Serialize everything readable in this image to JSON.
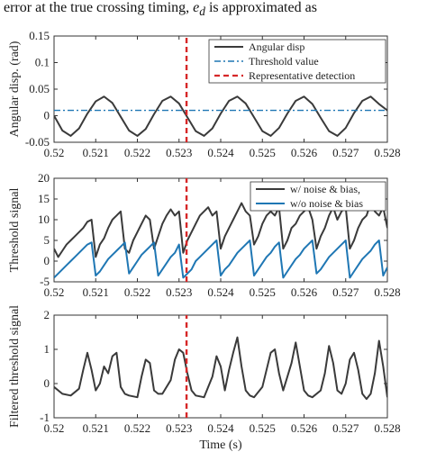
{
  "header": {
    "text": "error at the true crossing timing, e_d is approximated as",
    "text_prefix": "error at the true crossing timing, ",
    "text_var": "e",
    "text_sub": "d",
    "text_suffix": " is approximated as"
  },
  "colors": {
    "dark": "#3a3a3a",
    "blue": "#1f77b4",
    "red": "#d62728",
    "axis": "#333333"
  },
  "chart_data": [
    {
      "type": "line",
      "id": "angular",
      "ylabel": "Angular disp. (rad)",
      "xlabel": "",
      "xlim": [
        0.52,
        0.528
      ],
      "ylim": [
        -0.05,
        0.15
      ],
      "x_ticks": [
        "0.52",
        "0.521",
        "0.522",
        "0.523",
        "0.524",
        "0.525",
        "0.526",
        "0.527",
        "0.528"
      ],
      "y_ticks": [
        "-0.05",
        "0",
        "0.05",
        "0.1",
        "0.15"
      ],
      "legend_position": "top-right",
      "series": [
        {
          "name": "Angular disp",
          "style": "solid",
          "color": "#3a3a3a",
          "x": [
            0.52,
            0.5202,
            0.5204,
            0.5206,
            0.5208,
            0.521,
            0.5212,
            0.5214,
            0.5216,
            0.5218,
            0.522,
            0.5222,
            0.5224,
            0.5226,
            0.5228,
            0.523,
            0.5232,
            0.5234,
            0.5236,
            0.5238,
            0.524,
            0.5242,
            0.5244,
            0.5246,
            0.5248,
            0.525,
            0.5252,
            0.5254,
            0.5256,
            0.5258,
            0.526,
            0.5262,
            0.5264,
            0.5266,
            0.5268,
            0.527,
            0.5272,
            0.5274,
            0.5276,
            0.5278,
            0.528
          ],
          "y": [
            0.0,
            -0.028,
            -0.038,
            -0.024,
            0.004,
            0.027,
            0.036,
            0.024,
            -0.002,
            -0.028,
            -0.038,
            -0.025,
            0.003,
            0.028,
            0.036,
            0.023,
            -0.003,
            -0.029,
            -0.038,
            -0.024,
            0.004,
            0.028,
            0.036,
            0.023,
            -0.003,
            -0.029,
            -0.038,
            -0.023,
            0.004,
            0.028,
            0.036,
            0.022,
            -0.004,
            -0.029,
            -0.038,
            -0.023,
            0.005,
            0.028,
            0.036,
            0.022,
            0.01
          ]
        },
        {
          "name": "Threshold value",
          "style": "dashdot",
          "color": "#1f77b4",
          "x": [
            0.52,
            0.528
          ],
          "y": [
            0.01,
            0.01
          ]
        },
        {
          "name": "Representative detection",
          "style": "dashed",
          "color": "#d62728",
          "x": [
            0.52318,
            0.52318
          ],
          "y": [
            -0.05,
            0.15
          ]
        }
      ]
    },
    {
      "type": "line",
      "id": "threshold",
      "ylabel": "Threshold signal",
      "xlabel": "",
      "xlim": [
        0.52,
        0.528
      ],
      "ylim": [
        -5,
        20
      ],
      "x_ticks": [
        "0.52",
        "0.521",
        "0.522",
        "0.523",
        "0.524",
        "0.525",
        "0.526",
        "0.527",
        "0.528"
      ],
      "y_ticks": [
        "-5",
        "0",
        "5",
        "10",
        "15",
        "20"
      ],
      "legend_position": "top-right",
      "series": [
        {
          "name": "w/ noise & bias,",
          "style": "solid",
          "color": "#3a3a3a",
          "x": [
            0.52,
            0.5201,
            0.5202,
            0.5203,
            0.5204,
            0.5205,
            0.5206,
            0.5207,
            0.5208,
            0.5209,
            0.521,
            0.5211,
            0.5212,
            0.5213,
            0.5214,
            0.5215,
            0.5216,
            0.5217,
            0.5218,
            0.5219,
            0.522,
            0.5221,
            0.5222,
            0.5223,
            0.5224,
            0.5225,
            0.5226,
            0.5227,
            0.5228,
            0.5229,
            0.523,
            0.5231,
            0.5232,
            0.5233,
            0.5234,
            0.5235,
            0.5236,
            0.5237,
            0.5238,
            0.5239,
            0.524,
            0.5241,
            0.5242,
            0.5243,
            0.5244,
            0.5245,
            0.5246,
            0.5247,
            0.5248,
            0.5249,
            0.525,
            0.5251,
            0.5252,
            0.5253,
            0.5254,
            0.5255,
            0.5256,
            0.5257,
            0.5258,
            0.5259,
            0.526,
            0.5261,
            0.5262,
            0.5263,
            0.5264,
            0.5265,
            0.5266,
            0.5267,
            0.5268,
            0.5269,
            0.527,
            0.5271,
            0.5272,
            0.5273,
            0.5274,
            0.5275,
            0.5276,
            0.5277,
            0.5278,
            0.5279,
            0.528
          ],
          "y": [
            3,
            1,
            2.5,
            4,
            5,
            6,
            7,
            8,
            9.5,
            10,
            1,
            4,
            5.5,
            8,
            10,
            11,
            12,
            3,
            2,
            5,
            7,
            9,
            11,
            10,
            3,
            6,
            9,
            11,
            12.5,
            11,
            12,
            2,
            5,
            7,
            9,
            11,
            12,
            13,
            11,
            12,
            3,
            6,
            8,
            10,
            12,
            14,
            12,
            11,
            4,
            6,
            9,
            11,
            12,
            11,
            13,
            3,
            5,
            8,
            9,
            11,
            12,
            13,
            10,
            3,
            6,
            8,
            11,
            13,
            10,
            12,
            13,
            3,
            5,
            8,
            10,
            11,
            14,
            12,
            11,
            13,
            8
          ]
        },
        {
          "name": "w/o noise & bias",
          "style": "solid",
          "color": "#1f77b4",
          "x": [
            0.52,
            0.5201,
            0.5202,
            0.5203,
            0.5204,
            0.5205,
            0.5206,
            0.5207,
            0.5208,
            0.5209,
            0.521,
            0.5211,
            0.5212,
            0.5213,
            0.5214,
            0.5215,
            0.5216,
            0.5217,
            0.5218,
            0.5219,
            0.522,
            0.5221,
            0.5222,
            0.5223,
            0.5224,
            0.5225,
            0.5226,
            0.5227,
            0.5228,
            0.5229,
            0.523,
            0.5231,
            0.5232,
            0.5233,
            0.5234,
            0.5235,
            0.5236,
            0.5237,
            0.5238,
            0.5239,
            0.524,
            0.5241,
            0.5242,
            0.5243,
            0.5244,
            0.5245,
            0.5246,
            0.5247,
            0.5248,
            0.5249,
            0.525,
            0.5251,
            0.5252,
            0.5253,
            0.5254,
            0.5255,
            0.5256,
            0.5257,
            0.5258,
            0.5259,
            0.526,
            0.5261,
            0.5262,
            0.5263,
            0.5264,
            0.5265,
            0.5266,
            0.5267,
            0.5268,
            0.5269,
            0.527,
            0.5271,
            0.5272,
            0.5273,
            0.5274,
            0.5275,
            0.5276,
            0.5277,
            0.5278,
            0.5279,
            0.528
          ],
          "y": [
            -4,
            -3,
            -2,
            -1,
            0,
            1,
            2,
            3,
            4,
            4.5,
            -3.5,
            -2.5,
            -1,
            0.5,
            1.5,
            2.5,
            3.5,
            4.5,
            -3,
            -1.5,
            0,
            1.5,
            2.5,
            3.5,
            4.5,
            -3.5,
            -2,
            -0.5,
            1,
            2,
            4,
            -4,
            -3,
            -2,
            0,
            1,
            2,
            3,
            4,
            5,
            -3.5,
            -2,
            -1,
            0.5,
            2,
            3,
            4,
            5,
            -3.5,
            -2,
            -0.5,
            1,
            2,
            3.5,
            4.5,
            -4,
            -2.5,
            -1,
            0.5,
            1.5,
            3,
            4,
            5,
            -3,
            -2,
            -0.5,
            1,
            2,
            3,
            4,
            5,
            -4,
            -2.5,
            -1,
            0.5,
            1.5,
            2.5,
            4,
            5,
            -3.5,
            -1.5
          ]
        },
        {
          "name": "",
          "style": "dashed",
          "color": "#d62728",
          "x": [
            0.52318,
            0.52318
          ],
          "y": [
            -5,
            20
          ]
        }
      ]
    },
    {
      "type": "line",
      "id": "filtered",
      "ylabel": "Filtered threshold signal",
      "xlabel": "Time (s)",
      "xlim": [
        0.52,
        0.528
      ],
      "ylim": [
        -1,
        2
      ],
      "x_ticks": [
        "0.52",
        "0.521",
        "0.522",
        "0.523",
        "0.524",
        "0.525",
        "0.526",
        "0.527",
        "0.528"
      ],
      "y_ticks": [
        "-1",
        "0",
        "1",
        "2"
      ],
      "series": [
        {
          "name": "",
          "style": "solid",
          "color": "#3a3a3a",
          "x": [
            0.52,
            0.5202,
            0.5204,
            0.5206,
            0.5207,
            0.5208,
            0.5209,
            0.521,
            0.5211,
            0.5212,
            0.5213,
            0.5214,
            0.5215,
            0.5216,
            0.5217,
            0.5218,
            0.522,
            0.5221,
            0.5222,
            0.5223,
            0.5224,
            0.5225,
            0.5226,
            0.5228,
            0.5229,
            0.523,
            0.5231,
            0.5232,
            0.5233,
            0.5234,
            0.5236,
            0.5237,
            0.5238,
            0.5239,
            0.524,
            0.5241,
            0.5242,
            0.5243,
            0.5244,
            0.5245,
            0.5246,
            0.5247,
            0.5248,
            0.525,
            0.5251,
            0.5252,
            0.5253,
            0.5254,
            0.5255,
            0.5256,
            0.5257,
            0.5258,
            0.5259,
            0.526,
            0.5261,
            0.5262,
            0.5264,
            0.5265,
            0.5266,
            0.5267,
            0.5268,
            0.5269,
            0.527,
            0.5271,
            0.5272,
            0.5273,
            0.5274,
            0.5275,
            0.5276,
            0.5277,
            0.5278,
            0.5279,
            0.528
          ],
          "y": [
            -0.1,
            -0.3,
            -0.35,
            -0.15,
            0.4,
            0.9,
            0.4,
            -0.2,
            0.0,
            0.5,
            0.3,
            0.8,
            0.9,
            -0.1,
            -0.3,
            -0.35,
            -0.4,
            0.2,
            0.7,
            0.6,
            -0.2,
            -0.3,
            -0.3,
            0.1,
            0.7,
            1.0,
            0.9,
            0.3,
            -0.2,
            -0.35,
            -0.4,
            -0.1,
            0.2,
            0.8,
            0.5,
            -0.2,
            0.4,
            0.9,
            1.35,
            0.5,
            -0.2,
            -0.35,
            -0.4,
            -0.1,
            0.4,
            0.9,
            1.0,
            0.3,
            -0.2,
            0.2,
            0.6,
            1.2,
            0.5,
            -0.2,
            -0.35,
            -0.4,
            -0.2,
            0.3,
            1.1,
            0.6,
            -0.2,
            -0.3,
            0.0,
            0.7,
            0.9,
            0.4,
            -0.3,
            -0.45,
            -0.3,
            0.3,
            1.25,
            0.5,
            -0.4
          ]
        },
        {
          "name": "",
          "style": "dashed",
          "color": "#d62728",
          "x": [
            0.52318,
            0.52318
          ],
          "y": [
            -1,
            2
          ]
        }
      ]
    }
  ]
}
